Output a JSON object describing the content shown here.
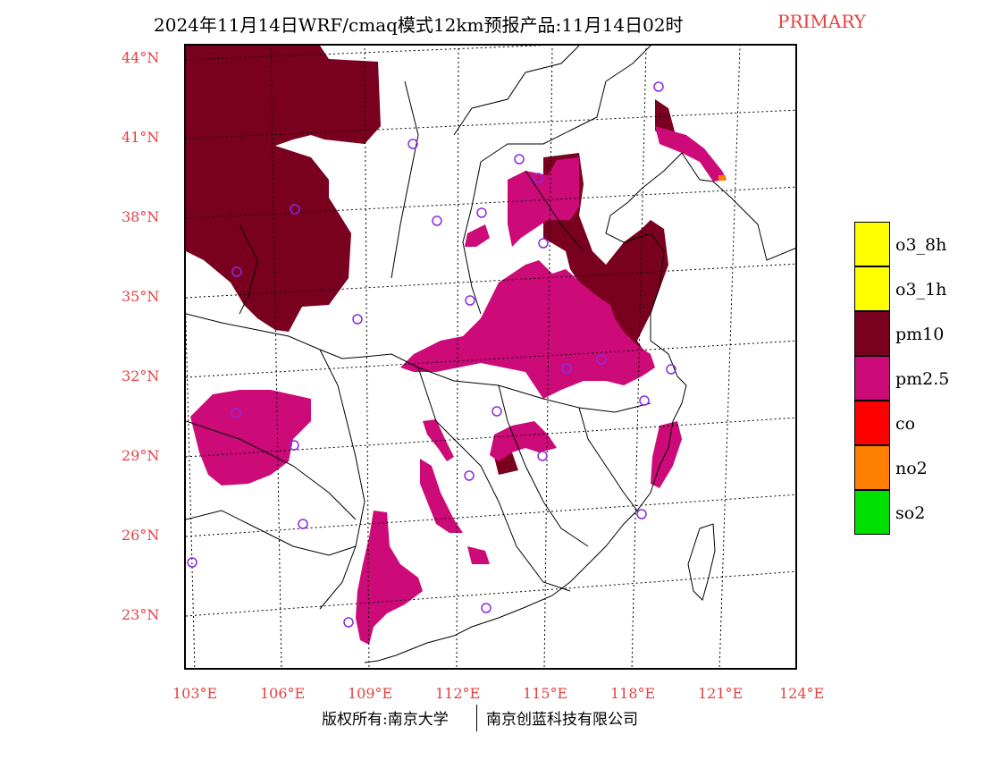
{
  "title": {
    "text": "2024年11月14日WRF/cmaq模式12km预报产品:11月14日02时",
    "tag": "PRIMARY"
  },
  "map": {
    "lat_labels": [
      "44°N",
      "41°N",
      "38°N",
      "35°N",
      "32°N",
      "29°N",
      "26°N",
      "23°N"
    ],
    "lon_labels": [
      "103°E",
      "106°E",
      "109°E",
      "112°E",
      "115°E",
      "118°E",
      "121°E",
      "124°E"
    ],
    "colors": {
      "pm10": "#7a0020",
      "pm25": "#cc0a78",
      "no2": "#ff7f00",
      "station_marker": "#8a2be2"
    }
  },
  "legend": {
    "items": [
      {
        "label": "o3_8h",
        "color": "#ffff00"
      },
      {
        "label": "o3_1h",
        "color": "#ffff00"
      },
      {
        "label": "pm10",
        "color": "#7a0020"
      },
      {
        "label": "pm2.5",
        "color": "#cc0a78"
      },
      {
        "label": "co",
        "color": "#ff0000"
      },
      {
        "label": "no2",
        "color": "#ff7f00"
      },
      {
        "label": "so2",
        "color": "#00e000"
      }
    ]
  },
  "footer": {
    "left": "版权所有:南京大学",
    "right": "南京创蓝科技有限公司"
  }
}
